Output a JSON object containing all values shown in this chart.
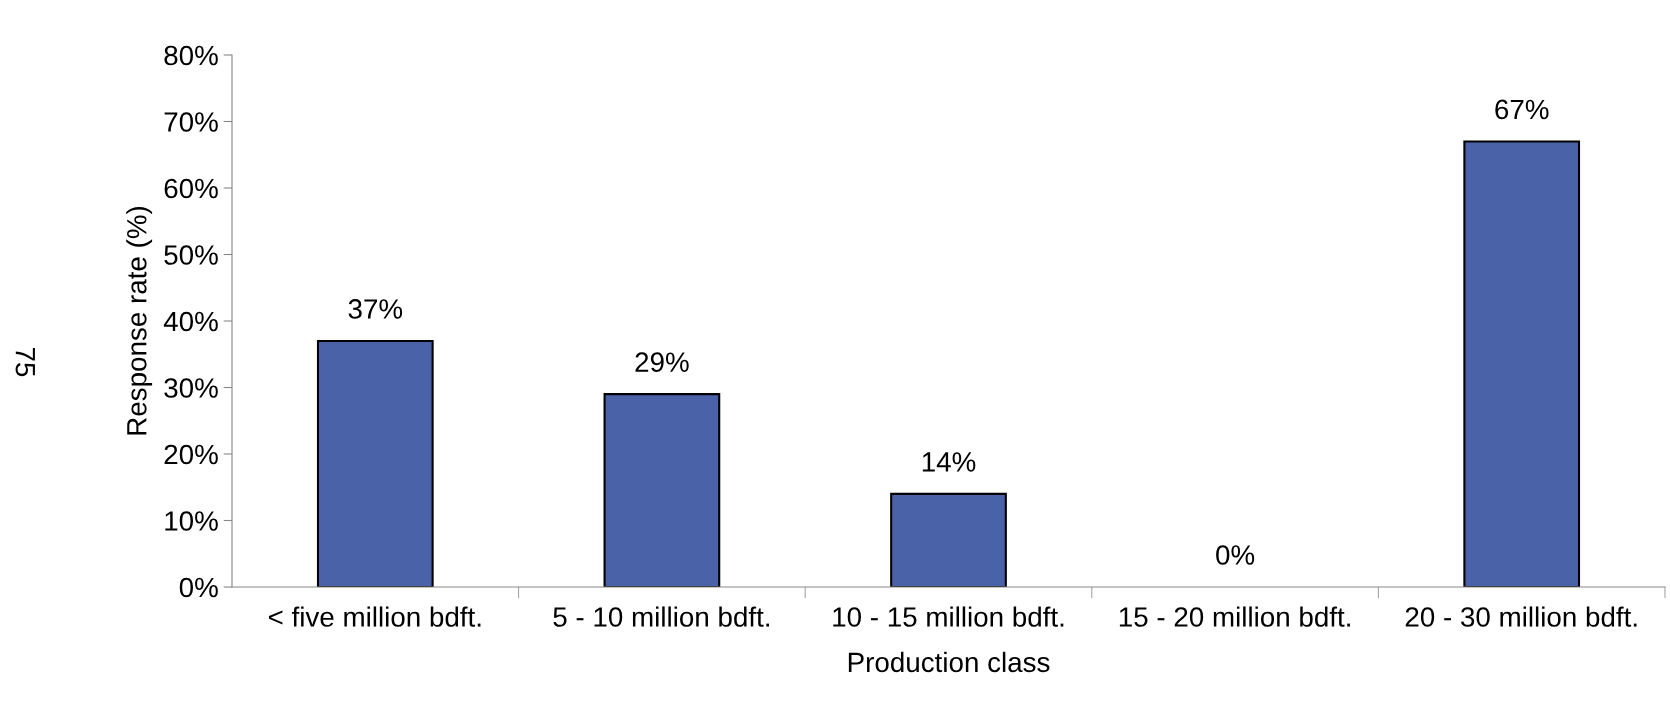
{
  "chart_data": {
    "type": "bar",
    "xlabel": "Production class",
    "ylabel": "Response rate (%)",
    "categories": [
      "< five million bdft.",
      "5 - 10 million bdft.",
      "10 - 15 million bdft.",
      "15 - 20 million bdft.",
      "20 - 30 million bdft."
    ],
    "values": [
      37,
      29,
      14,
      0,
      67
    ],
    "value_labels": [
      "37%",
      "29%",
      "14%",
      "0%",
      "67%"
    ],
    "color": "#4a62a8",
    "ylim": [
      0,
      80
    ],
    "yticks": [
      {
        "value": 0,
        "label": "0%"
      },
      {
        "value": 10,
        "label": "10%"
      },
      {
        "value": 20,
        "label": "20%"
      },
      {
        "value": 30,
        "label": "30%"
      },
      {
        "value": 40,
        "label": "40%"
      },
      {
        "value": 50,
        "label": "50%"
      },
      {
        "value": 60,
        "label": "60%"
      },
      {
        "value": 70,
        "label": "70%"
      },
      {
        "value": 80,
        "label": "80%"
      }
    ],
    "grid": false,
    "legend": false,
    "annotations": [
      "75"
    ]
  }
}
